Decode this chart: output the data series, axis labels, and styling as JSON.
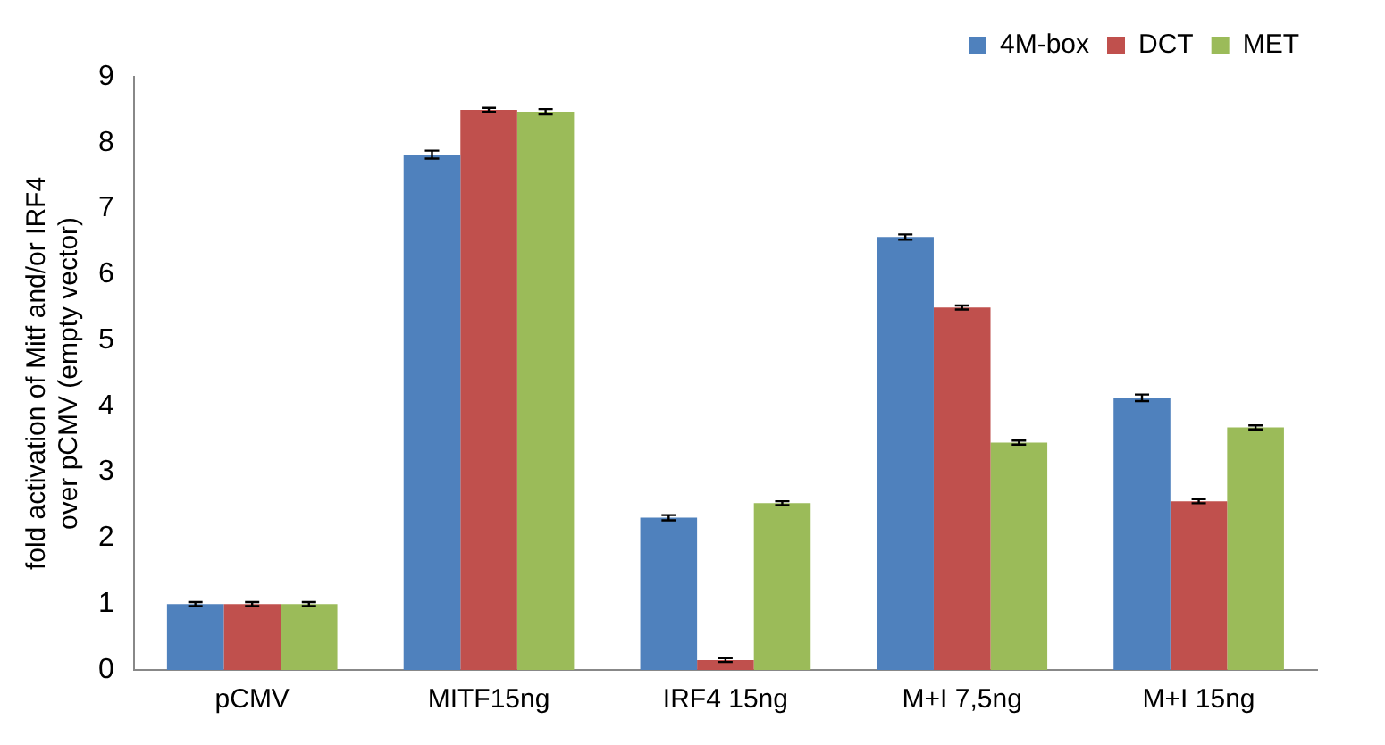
{
  "chart_data": {
    "type": "bar",
    "ylabel": "fold activation of Mitf and/or IRF4 over pCMV (empty vector)",
    "categories": [
      "pCMV",
      "MITF15ng",
      "IRF4 15ng",
      "M+I 7,5ng",
      "M+I 15ng"
    ],
    "series": [
      {
        "name": "4M-box",
        "color": "#4f81bd",
        "values": [
          1.0,
          7.82,
          2.31,
          6.57,
          4.13
        ],
        "errors": [
          0.03,
          0.06,
          0.04,
          0.04,
          0.05
        ]
      },
      {
        "name": "DCT",
        "color": "#c0504d",
        "values": [
          1.0,
          8.5,
          0.15,
          5.5,
          2.56
        ],
        "errors": [
          0.03,
          0.03,
          0.03,
          0.03,
          0.03
        ]
      },
      {
        "name": "MET",
        "color": "#9bbb59",
        "values": [
          1.0,
          8.47,
          2.53,
          3.45,
          3.68
        ],
        "errors": [
          0.03,
          0.04,
          0.03,
          0.03,
          0.03
        ]
      }
    ],
    "ylim": [
      0,
      9
    ],
    "yticks": [
      0,
      1,
      2,
      3,
      4,
      5,
      6,
      7,
      8,
      9
    ],
    "grid": false,
    "legend": "top right"
  }
}
